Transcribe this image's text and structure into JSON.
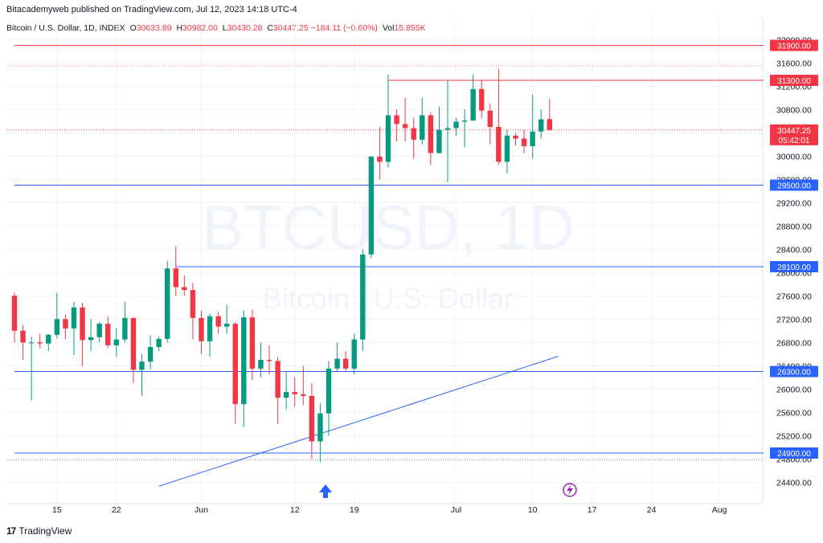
{
  "header": {
    "published_line": "Bitacademyweb published on TradingView.com, Jul 12, 2023 14:18 UTC-4"
  },
  "legend": {
    "symbol": "Bitcoin / U.S. Dollar, 1D, INDEX",
    "o_label": "O",
    "o_value": "30633.89",
    "h_label": "H",
    "h_value": "30982.00",
    "l_label": "L",
    "l_value": "30430.28",
    "c_label": "C",
    "c_value": "30447.25",
    "change": "−184.11 (−0.60%)",
    "vol_label": "Vol",
    "vol_value": "15.855K"
  },
  "watermark": {
    "ticker": "BTCUSD, 1D",
    "name": "Bitcoin / U.S. Dollar"
  },
  "footer": {
    "brand": "TradingView"
  },
  "colors": {
    "up": "#089981",
    "down": "#f23645",
    "support_line": "#2962ff",
    "resistance_line": "#f23645"
  },
  "chart_data": {
    "type": "candlestick",
    "y_axis_ticks": [
      "24400.00",
      "24800.00",
      "25200.00",
      "25600.00",
      "26000.00",
      "26400.00",
      "26800.00",
      "27200.00",
      "27600.00",
      "28000.00",
      "28400.00",
      "28800.00",
      "29200.00",
      "29600.00",
      "30000.00",
      "30400.00",
      "30800.00",
      "31200.00",
      "31600.00",
      "32000.00"
    ],
    "x_axis_ticks": [
      {
        "label": "15",
        "date": "2023-05-15"
      },
      {
        "label": "22",
        "date": "2023-05-22"
      },
      {
        "label": "Jun",
        "date": "2023-06-01"
      },
      {
        "label": "12",
        "date": "2023-06-12"
      },
      {
        "label": "19",
        "date": "2023-06-19"
      },
      {
        "label": "Jul",
        "date": "2023-07-01"
      },
      {
        "label": "10",
        "date": "2023-07-10"
      },
      {
        "label": "17",
        "date": "2023-07-17"
      },
      {
        "label": "24",
        "date": "2023-07-24"
      },
      {
        "label": "Aug",
        "date": "2023-08-01"
      }
    ],
    "y_range": [
      24100,
      32100
    ],
    "x_range": [
      "2023-05-10",
      "2023-08-06"
    ],
    "price_labels": [
      {
        "text": "31900.00",
        "price": 31900,
        "kind": "resistance"
      },
      {
        "text": "31300.00",
        "price": 31300,
        "kind": "resistance"
      },
      {
        "text": "29500.00",
        "price": 29500,
        "kind": "support"
      },
      {
        "text": "28100.00",
        "price": 28100,
        "kind": "support"
      },
      {
        "text": "26300.00",
        "price": 26300,
        "kind": "support"
      },
      {
        "text": "24900.00",
        "price": 24900,
        "kind": "support"
      }
    ],
    "horizontal_lines": [
      {
        "price": 31900,
        "color": "#f23645",
        "from": "2023-05-10"
      },
      {
        "price": 31300,
        "color": "#f23645",
        "from": "2023-06-23"
      },
      {
        "price": 29500,
        "color": "#2962ff",
        "from": "2023-05-10"
      },
      {
        "price": 28100,
        "color": "#2962ff",
        "from": "2023-05-29"
      },
      {
        "price": 26300,
        "color": "#2962ff",
        "from": "2023-05-10"
      },
      {
        "price": 24900,
        "color": "#2962ff",
        "from": "2023-05-10"
      }
    ],
    "trendline": {
      "from": {
        "date": "2023-05-27",
        "price": 24330
      },
      "to": {
        "date": "2023-07-13",
        "price": 26560
      }
    },
    "current_price": {
      "text": "30447.25",
      "price": 30447.25,
      "countdown": "05:42:01"
    },
    "candles": [
      {
        "d": "2023-05-10",
        "o": 27600,
        "h": 27650,
        "l": 26800,
        "c": 27000
      },
      {
        "d": "2023-05-11",
        "o": 27000,
        "h": 27100,
        "l": 26500,
        "c": 26800
      },
      {
        "d": "2023-05-12",
        "o": 26800,
        "h": 26900,
        "l": 25800,
        "c": 26800
      },
      {
        "d": "2023-05-13",
        "o": 26800,
        "h": 26950,
        "l": 26700,
        "c": 26780
      },
      {
        "d": "2023-05-14",
        "o": 26780,
        "h": 26950,
        "l": 26650,
        "c": 26930
      },
      {
        "d": "2023-05-15",
        "o": 26930,
        "h": 27650,
        "l": 26870,
        "c": 27200
      },
      {
        "d": "2023-05-16",
        "o": 27200,
        "h": 27280,
        "l": 26850,
        "c": 27040
      },
      {
        "d": "2023-05-17",
        "o": 27040,
        "h": 27500,
        "l": 26580,
        "c": 27400
      },
      {
        "d": "2023-05-18",
        "o": 27400,
        "h": 27480,
        "l": 26400,
        "c": 26840
      },
      {
        "d": "2023-05-19",
        "o": 26840,
        "h": 27200,
        "l": 26650,
        "c": 26890
      },
      {
        "d": "2023-05-20",
        "o": 26890,
        "h": 27150,
        "l": 26800,
        "c": 27120
      },
      {
        "d": "2023-05-21",
        "o": 27120,
        "h": 27250,
        "l": 26700,
        "c": 26750
      },
      {
        "d": "2023-05-22",
        "o": 26750,
        "h": 27050,
        "l": 26550,
        "c": 26850
      },
      {
        "d": "2023-05-23",
        "o": 26850,
        "h": 27500,
        "l": 26800,
        "c": 27220
      },
      {
        "d": "2023-05-24",
        "o": 27220,
        "h": 27230,
        "l": 26100,
        "c": 26330
      },
      {
        "d": "2023-05-25",
        "o": 26330,
        "h": 26600,
        "l": 25880,
        "c": 26470
      },
      {
        "d": "2023-05-26",
        "o": 26470,
        "h": 26920,
        "l": 26340,
        "c": 26720
      },
      {
        "d": "2023-05-27",
        "o": 26720,
        "h": 26900,
        "l": 26650,
        "c": 26860
      },
      {
        "d": "2023-05-28",
        "o": 26860,
        "h": 28200,
        "l": 26800,
        "c": 28070
      },
      {
        "d": "2023-05-29",
        "o": 28070,
        "h": 28450,
        "l": 27600,
        "c": 27750
      },
      {
        "d": "2023-05-30",
        "o": 27750,
        "h": 27950,
        "l": 27600,
        "c": 27700
      },
      {
        "d": "2023-05-31",
        "o": 27700,
        "h": 27820,
        "l": 26850,
        "c": 27220
      },
      {
        "d": "2023-06-01",
        "o": 27220,
        "h": 27350,
        "l": 26600,
        "c": 26820
      },
      {
        "d": "2023-06-02",
        "o": 26820,
        "h": 27300,
        "l": 26550,
        "c": 27250
      },
      {
        "d": "2023-06-03",
        "o": 27250,
        "h": 27330,
        "l": 26950,
        "c": 27070
      },
      {
        "d": "2023-06-04",
        "o": 27070,
        "h": 27450,
        "l": 26950,
        "c": 27120
      },
      {
        "d": "2023-06-05",
        "o": 27120,
        "h": 27150,
        "l": 25400,
        "c": 25740
      },
      {
        "d": "2023-06-06",
        "o": 25740,
        "h": 27350,
        "l": 25350,
        "c": 27230
      },
      {
        "d": "2023-06-07",
        "o": 27230,
        "h": 27360,
        "l": 26150,
        "c": 26350
      },
      {
        "d": "2023-06-08",
        "o": 26350,
        "h": 26800,
        "l": 26200,
        "c": 26500
      },
      {
        "d": "2023-06-09",
        "o": 26500,
        "h": 26750,
        "l": 26250,
        "c": 26480
      },
      {
        "d": "2023-06-10",
        "o": 26480,
        "h": 26550,
        "l": 25400,
        "c": 25850
      },
      {
        "d": "2023-06-11",
        "o": 25850,
        "h": 26300,
        "l": 25650,
        "c": 25950
      },
      {
        "d": "2023-06-12",
        "o": 25950,
        "h": 26200,
        "l": 25700,
        "c": 25910
      },
      {
        "d": "2023-06-13",
        "o": 25910,
        "h": 26400,
        "l": 25720,
        "c": 25880
      },
      {
        "d": "2023-06-14",
        "o": 25880,
        "h": 26100,
        "l": 24800,
        "c": 25100
      },
      {
        "d": "2023-06-15",
        "o": 25100,
        "h": 25750,
        "l": 24750,
        "c": 25580
      },
      {
        "d": "2023-06-16",
        "o": 25580,
        "h": 26480,
        "l": 25200,
        "c": 26350
      },
      {
        "d": "2023-06-17",
        "o": 26350,
        "h": 26800,
        "l": 26300,
        "c": 26520
      },
      {
        "d": "2023-06-18",
        "o": 26520,
        "h": 26650,
        "l": 26300,
        "c": 26350
      },
      {
        "d": "2023-06-19",
        "o": 26350,
        "h": 26950,
        "l": 26250,
        "c": 26850
      },
      {
        "d": "2023-06-20",
        "o": 26850,
        "h": 28400,
        "l": 26650,
        "c": 28310
      },
      {
        "d": "2023-06-21",
        "o": 28310,
        "h": 30000,
        "l": 28250,
        "c": 29990
      },
      {
        "d": "2023-06-22",
        "o": 29990,
        "h": 30500,
        "l": 29600,
        "c": 29900
      },
      {
        "d": "2023-06-23",
        "o": 29900,
        "h": 31400,
        "l": 29800,
        "c": 30700
      },
      {
        "d": "2023-06-24",
        "o": 30700,
        "h": 30800,
        "l": 30250,
        "c": 30550
      },
      {
        "d": "2023-06-25",
        "o": 30550,
        "h": 31000,
        "l": 30250,
        "c": 30480
      },
      {
        "d": "2023-06-26",
        "o": 30480,
        "h": 30650,
        "l": 29950,
        "c": 30280
      },
      {
        "d": "2023-06-27",
        "o": 30280,
        "h": 31000,
        "l": 30200,
        "c": 30700
      },
      {
        "d": "2023-06-28",
        "o": 30700,
        "h": 30750,
        "l": 29850,
        "c": 30050
      },
      {
        "d": "2023-06-29",
        "o": 30050,
        "h": 30850,
        "l": 30050,
        "c": 30450
      },
      {
        "d": "2023-06-30",
        "o": 30450,
        "h": 31300,
        "l": 29550,
        "c": 30480
      },
      {
        "d": "2023-07-01",
        "o": 30480,
        "h": 30650,
        "l": 30350,
        "c": 30590
      },
      {
        "d": "2023-07-02",
        "o": 30590,
        "h": 30800,
        "l": 30150,
        "c": 30610
      },
      {
        "d": "2023-07-03",
        "o": 30610,
        "h": 31400,
        "l": 30600,
        "c": 31150
      },
      {
        "d": "2023-07-04",
        "o": 31150,
        "h": 31320,
        "l": 30650,
        "c": 30780
      },
      {
        "d": "2023-07-05",
        "o": 30780,
        "h": 30900,
        "l": 30200,
        "c": 30500
      },
      {
        "d": "2023-07-06",
        "o": 30500,
        "h": 31500,
        "l": 29850,
        "c": 29900
      },
      {
        "d": "2023-07-07",
        "o": 29900,
        "h": 30450,
        "l": 29700,
        "c": 30350
      },
      {
        "d": "2023-07-08",
        "o": 30350,
        "h": 30400,
        "l": 30180,
        "c": 30300
      },
      {
        "d": "2023-07-09",
        "o": 30300,
        "h": 30450,
        "l": 30050,
        "c": 30170
      },
      {
        "d": "2023-07-10",
        "o": 30170,
        "h": 31050,
        "l": 29950,
        "c": 30420
      },
      {
        "d": "2023-07-11",
        "o": 30420,
        "h": 30800,
        "l": 30300,
        "c": 30630
      },
      {
        "d": "2023-07-12",
        "o": 30633.89,
        "h": 30982,
        "l": 30430.28,
        "c": 30447.25
      }
    ]
  }
}
